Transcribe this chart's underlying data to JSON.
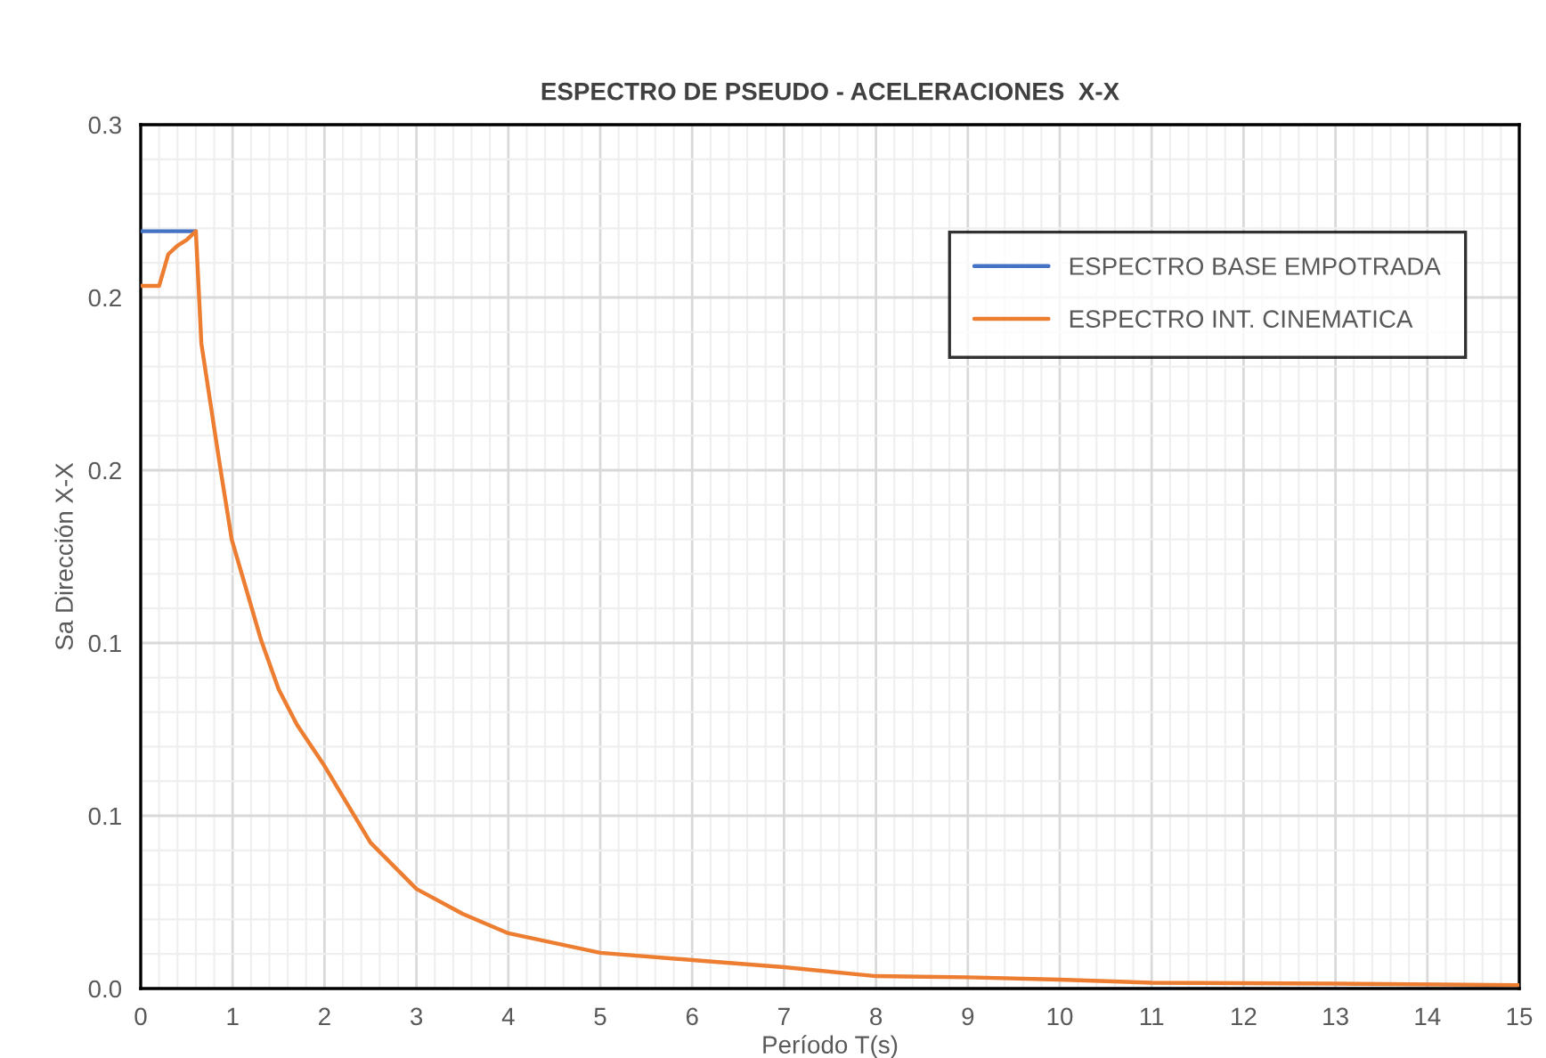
{
  "chart_data": {
    "type": "line",
    "title": "ESPECTRO DE PSEUDO - ACELERACIONES  X-X",
    "xlabel": "Período T(s)",
    "ylabel": "Sa Dirección X-X",
    "xlim": [
      0,
      15
    ],
    "xticks": [
      0,
      1,
      2,
      3,
      4,
      5,
      6,
      7,
      8,
      9,
      10,
      11,
      12,
      13,
      14,
      15
    ],
    "ylim": [
      0,
      0.3
    ],
    "yticks": [
      {
        "value": 0,
        "label": "0.0"
      },
      {
        "value": 0.06,
        "label": "0.1"
      },
      {
        "value": 0.12,
        "label": "0.1"
      },
      {
        "value": 0.18,
        "label": "0.2"
      },
      {
        "value": 0.24,
        "label": "0.2"
      },
      {
        "value": 0.3,
        "label": "0.3"
      }
    ],
    "grid": true,
    "legend": "top right",
    "marker": "none",
    "line_style": "solid",
    "series": [
      {
        "name": "ESPECTRO BASE EMPOTRADA",
        "color": "#4472c4",
        "x": [
          0,
          0.6
        ],
        "values": [
          0.263,
          0.263
        ]
      },
      {
        "name": "ESPECTRO INT. CINEMATICA",
        "color": "#ed7d31",
        "x": [
          0,
          0.2,
          0.3,
          0.4,
          0.5,
          0.6,
          0.66,
          0.86,
          0.99,
          1.31,
          1.5,
          1.7,
          2.0,
          2.5,
          3.0,
          3.5,
          4.0,
          5.0,
          6.0,
          7.0,
          8.0,
          9.0,
          10.0,
          11.0,
          13.0,
          15.0
        ],
        "values": [
          0.244,
          0.244,
          0.255,
          0.258,
          0.26,
          0.263,
          0.224,
          0.182,
          0.156,
          0.121,
          0.104,
          0.0916,
          0.0773,
          0.0507,
          0.0346,
          0.026,
          0.0192,
          0.0124,
          0.0099,
          0.0074,
          0.0043,
          0.0039,
          0.0031,
          0.002,
          0.0017,
          0.0012
        ]
      }
    ]
  }
}
